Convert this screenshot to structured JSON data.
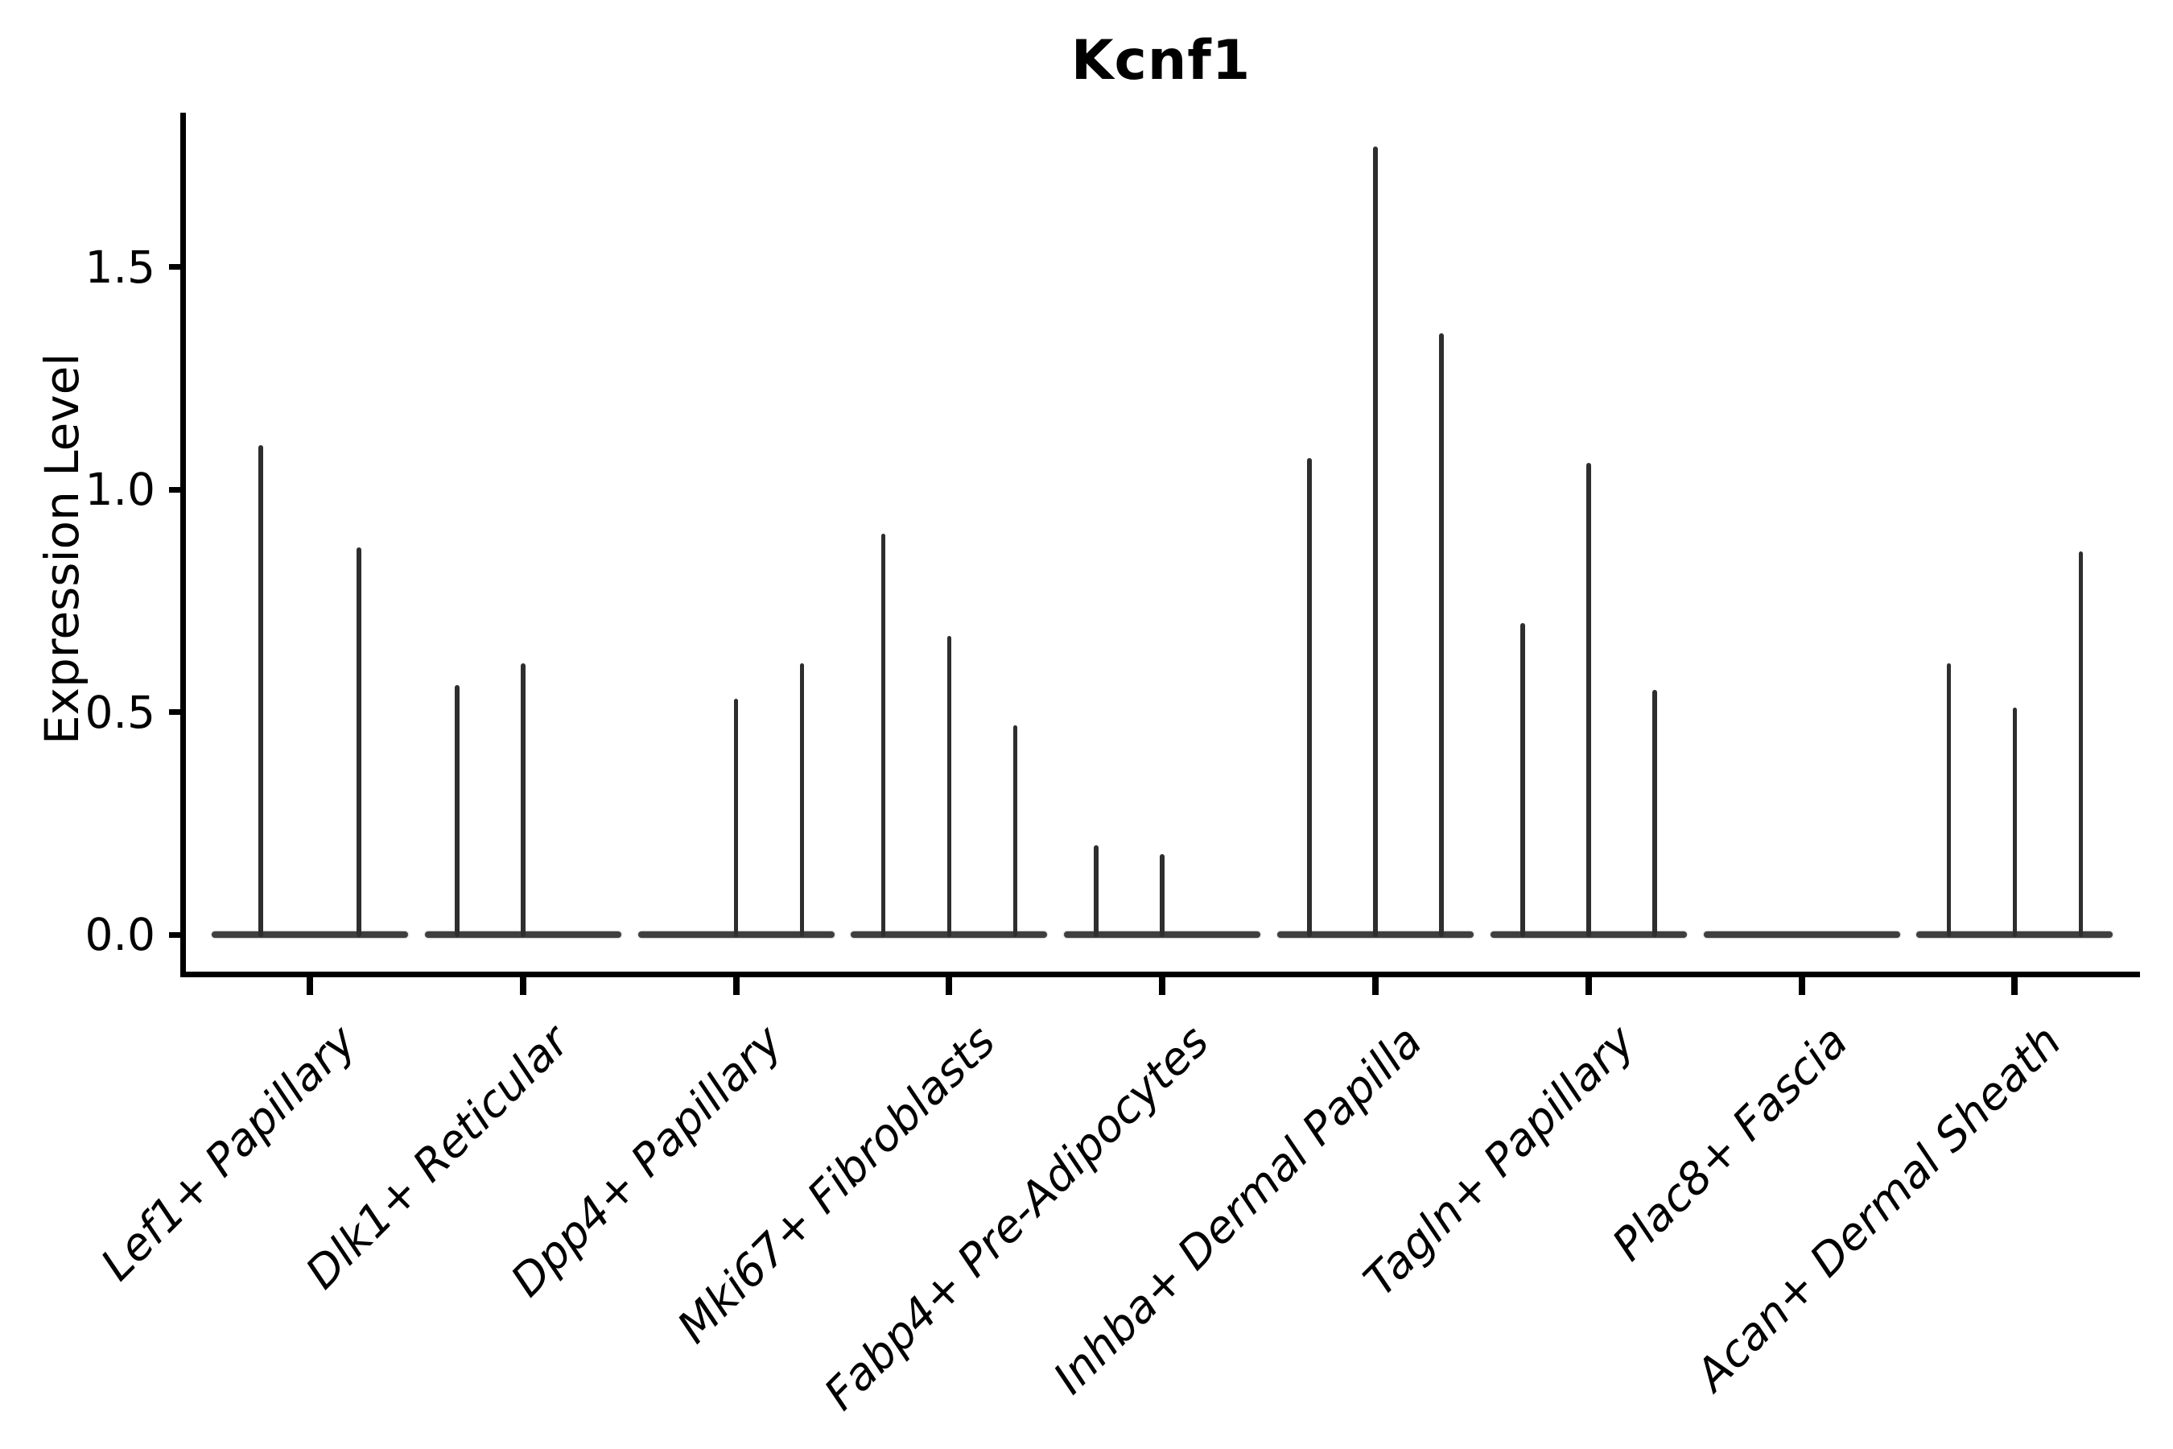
{
  "chart_data": {
    "type": "violin",
    "title": "Kcnf1",
    "ylabel": "Expression Level",
    "xlabel": "",
    "yticks": [
      0.0,
      0.5,
      1.0,
      1.5
    ],
    "ylim": [
      0,
      1.85
    ],
    "grid": false,
    "legend": "none",
    "style_note": "sparse single-cell expression violins: flat density base at 0 with thin vertical density spikes per sample slot",
    "colors": {
      "spike": "#2e2e2e",
      "baseline": "#3f3f3f",
      "axis": "#000000",
      "text": "#000000",
      "background": "#ffffff"
    },
    "categories": [
      "Lef1+ Papillary",
      "Dlk1+ Reticular",
      "Dpp4+ Papillary",
      "Mki67+ Fibroblasts",
      "Fabp4+ Pre-Adipocytes",
      "Inhba+ Dermal Papilla",
      "Tagln+ Papillary",
      "Plac8+ Fascia",
      "Acan+ Dermal Sheath"
    ],
    "groups": [
      {
        "label": "Lef1+ Papillary",
        "spikes": [
          {
            "dx": -61,
            "peak": 1.1
          },
          {
            "dx": 61,
            "peak": 0.87
          }
        ]
      },
      {
        "label": "Dlk1+ Reticular",
        "spikes": [
          {
            "dx": -82,
            "peak": 0.56
          },
          {
            "dx": 0,
            "peak": 0.61
          }
        ]
      },
      {
        "label": "Dpp4+ Papillary",
        "spikes": [
          {
            "dx": 0,
            "peak": 0.53
          },
          {
            "dx": 82,
            "peak": 0.61
          }
        ]
      },
      {
        "label": "Mki67+ Fibroblasts",
        "spikes": [
          {
            "dx": -82,
            "peak": 0.9
          },
          {
            "dx": 0,
            "peak": 0.67
          },
          {
            "dx": 82,
            "peak": 0.47
          }
        ]
      },
      {
        "label": "Fabp4+ Pre-Adipocytes",
        "spikes": [
          {
            "dx": -82,
            "peak": 0.2
          },
          {
            "dx": 0,
            "peak": 0.18
          }
        ]
      },
      {
        "label": "Inhba+ Dermal Papilla",
        "spikes": [
          {
            "dx": -82,
            "peak": 1.07
          },
          {
            "dx": 0,
            "peak": 1.77
          },
          {
            "dx": 82,
            "peak": 1.35
          }
        ]
      },
      {
        "label": "Tagln+ Papillary",
        "spikes": [
          {
            "dx": -82,
            "peak": 0.7
          },
          {
            "dx": 0,
            "peak": 1.06
          },
          {
            "dx": 82,
            "peak": 0.55
          }
        ]
      },
      {
        "label": "Plac8+ Fascia",
        "spikes": []
      },
      {
        "label": "Acan+ Dermal Sheath",
        "spikes": [
          {
            "dx": -82,
            "peak": 0.61
          },
          {
            "dx": 0,
            "peak": 0.51
          },
          {
            "dx": 82,
            "peak": 0.86
          }
        ]
      }
    ]
  }
}
